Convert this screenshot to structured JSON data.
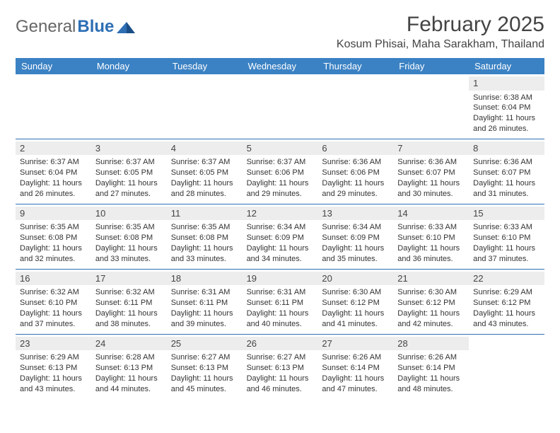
{
  "brand": {
    "part1": "General",
    "part2": "Blue"
  },
  "title": "February 2025",
  "location": "Kosum Phisai, Maha Sarakham, Thailand",
  "colors": {
    "header_bg": "#3b82c4",
    "header_text": "#ffffff",
    "daynum_bg": "#ededed",
    "rule": "#2e6fb5",
    "text": "#333333",
    "brand_blue": "#2e6fb5"
  },
  "dayNames": [
    "Sunday",
    "Monday",
    "Tuesday",
    "Wednesday",
    "Thursday",
    "Friday",
    "Saturday"
  ],
  "weeks": [
    [
      {
        "n": "",
        "sr": "",
        "ss": "",
        "dl": ""
      },
      {
        "n": "",
        "sr": "",
        "ss": "",
        "dl": ""
      },
      {
        "n": "",
        "sr": "",
        "ss": "",
        "dl": ""
      },
      {
        "n": "",
        "sr": "",
        "ss": "",
        "dl": ""
      },
      {
        "n": "",
        "sr": "",
        "ss": "",
        "dl": ""
      },
      {
        "n": "",
        "sr": "",
        "ss": "",
        "dl": ""
      },
      {
        "n": "1",
        "sr": "Sunrise: 6:38 AM",
        "ss": "Sunset: 6:04 PM",
        "dl": "Daylight: 11 hours and 26 minutes."
      }
    ],
    [
      {
        "n": "2",
        "sr": "Sunrise: 6:37 AM",
        "ss": "Sunset: 6:04 PM",
        "dl": "Daylight: 11 hours and 26 minutes."
      },
      {
        "n": "3",
        "sr": "Sunrise: 6:37 AM",
        "ss": "Sunset: 6:05 PM",
        "dl": "Daylight: 11 hours and 27 minutes."
      },
      {
        "n": "4",
        "sr": "Sunrise: 6:37 AM",
        "ss": "Sunset: 6:05 PM",
        "dl": "Daylight: 11 hours and 28 minutes."
      },
      {
        "n": "5",
        "sr": "Sunrise: 6:37 AM",
        "ss": "Sunset: 6:06 PM",
        "dl": "Daylight: 11 hours and 29 minutes."
      },
      {
        "n": "6",
        "sr": "Sunrise: 6:36 AM",
        "ss": "Sunset: 6:06 PM",
        "dl": "Daylight: 11 hours and 29 minutes."
      },
      {
        "n": "7",
        "sr": "Sunrise: 6:36 AM",
        "ss": "Sunset: 6:07 PM",
        "dl": "Daylight: 11 hours and 30 minutes."
      },
      {
        "n": "8",
        "sr": "Sunrise: 6:36 AM",
        "ss": "Sunset: 6:07 PM",
        "dl": "Daylight: 11 hours and 31 minutes."
      }
    ],
    [
      {
        "n": "9",
        "sr": "Sunrise: 6:35 AM",
        "ss": "Sunset: 6:08 PM",
        "dl": "Daylight: 11 hours and 32 minutes."
      },
      {
        "n": "10",
        "sr": "Sunrise: 6:35 AM",
        "ss": "Sunset: 6:08 PM",
        "dl": "Daylight: 11 hours and 33 minutes."
      },
      {
        "n": "11",
        "sr": "Sunrise: 6:35 AM",
        "ss": "Sunset: 6:08 PM",
        "dl": "Daylight: 11 hours and 33 minutes."
      },
      {
        "n": "12",
        "sr": "Sunrise: 6:34 AM",
        "ss": "Sunset: 6:09 PM",
        "dl": "Daylight: 11 hours and 34 minutes."
      },
      {
        "n": "13",
        "sr": "Sunrise: 6:34 AM",
        "ss": "Sunset: 6:09 PM",
        "dl": "Daylight: 11 hours and 35 minutes."
      },
      {
        "n": "14",
        "sr": "Sunrise: 6:33 AM",
        "ss": "Sunset: 6:10 PM",
        "dl": "Daylight: 11 hours and 36 minutes."
      },
      {
        "n": "15",
        "sr": "Sunrise: 6:33 AM",
        "ss": "Sunset: 6:10 PM",
        "dl": "Daylight: 11 hours and 37 minutes."
      }
    ],
    [
      {
        "n": "16",
        "sr": "Sunrise: 6:32 AM",
        "ss": "Sunset: 6:10 PM",
        "dl": "Daylight: 11 hours and 37 minutes."
      },
      {
        "n": "17",
        "sr": "Sunrise: 6:32 AM",
        "ss": "Sunset: 6:11 PM",
        "dl": "Daylight: 11 hours and 38 minutes."
      },
      {
        "n": "18",
        "sr": "Sunrise: 6:31 AM",
        "ss": "Sunset: 6:11 PM",
        "dl": "Daylight: 11 hours and 39 minutes."
      },
      {
        "n": "19",
        "sr": "Sunrise: 6:31 AM",
        "ss": "Sunset: 6:11 PM",
        "dl": "Daylight: 11 hours and 40 minutes."
      },
      {
        "n": "20",
        "sr": "Sunrise: 6:30 AM",
        "ss": "Sunset: 6:12 PM",
        "dl": "Daylight: 11 hours and 41 minutes."
      },
      {
        "n": "21",
        "sr": "Sunrise: 6:30 AM",
        "ss": "Sunset: 6:12 PM",
        "dl": "Daylight: 11 hours and 42 minutes."
      },
      {
        "n": "22",
        "sr": "Sunrise: 6:29 AM",
        "ss": "Sunset: 6:12 PM",
        "dl": "Daylight: 11 hours and 43 minutes."
      }
    ],
    [
      {
        "n": "23",
        "sr": "Sunrise: 6:29 AM",
        "ss": "Sunset: 6:13 PM",
        "dl": "Daylight: 11 hours and 43 minutes."
      },
      {
        "n": "24",
        "sr": "Sunrise: 6:28 AM",
        "ss": "Sunset: 6:13 PM",
        "dl": "Daylight: 11 hours and 44 minutes."
      },
      {
        "n": "25",
        "sr": "Sunrise: 6:27 AM",
        "ss": "Sunset: 6:13 PM",
        "dl": "Daylight: 11 hours and 45 minutes."
      },
      {
        "n": "26",
        "sr": "Sunrise: 6:27 AM",
        "ss": "Sunset: 6:13 PM",
        "dl": "Daylight: 11 hours and 46 minutes."
      },
      {
        "n": "27",
        "sr": "Sunrise: 6:26 AM",
        "ss": "Sunset: 6:14 PM",
        "dl": "Daylight: 11 hours and 47 minutes."
      },
      {
        "n": "28",
        "sr": "Sunrise: 6:26 AM",
        "ss": "Sunset: 6:14 PM",
        "dl": "Daylight: 11 hours and 48 minutes."
      },
      {
        "n": "",
        "sr": "",
        "ss": "",
        "dl": ""
      }
    ]
  ]
}
